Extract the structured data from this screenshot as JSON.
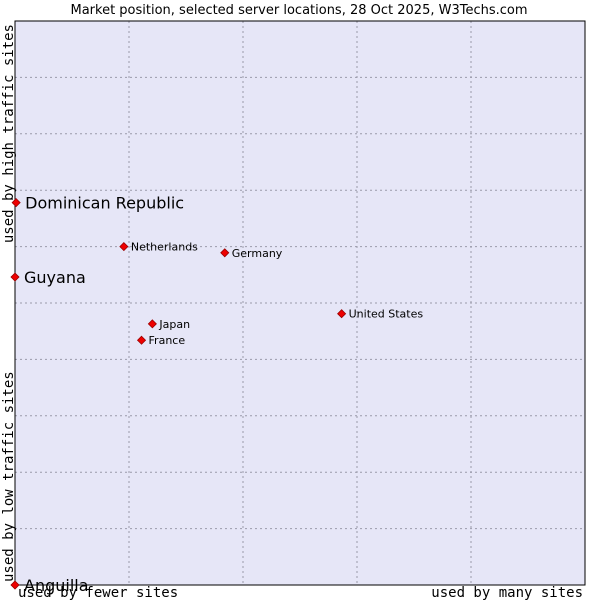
{
  "chart_data": {
    "type": "scatter",
    "title": "Market position, selected server locations, 28 Oct 2025, W3Techs.com",
    "xlabel_left": "used by fewer sites",
    "xlabel_right": "used by many sites",
    "ylabel_bottom": "used by low traffic sites",
    "ylabel_top": "used by high traffic sites",
    "xlim": [
      0,
      100
    ],
    "ylim": [
      0,
      100
    ],
    "grid": true,
    "colors": {
      "plot_bg": "#e6e6f7",
      "grid": "#9a9aaa",
      "border": "#000000",
      "point": "#ee0000",
      "point_edge": "#990000"
    },
    "points": [
      {
        "name": "Dominican Republic",
        "x": 0.2,
        "y": 67.8,
        "emphasis": true
      },
      {
        "name": "Guyana",
        "x": 0.0,
        "y": 54.6,
        "emphasis": true
      },
      {
        "name": "Anguilla",
        "x": 0.0,
        "y": 0.0,
        "emphasis": true
      },
      {
        "name": "Netherlands",
        "x": 19.1,
        "y": 60.0,
        "emphasis": false
      },
      {
        "name": "Germany",
        "x": 36.8,
        "y": 58.9,
        "emphasis": false
      },
      {
        "name": "United States",
        "x": 57.3,
        "y": 48.1,
        "emphasis": false
      },
      {
        "name": "Japan",
        "x": 24.1,
        "y": 46.3,
        "emphasis": false
      },
      {
        "name": "France",
        "x": 22.2,
        "y": 43.4,
        "emphasis": false
      }
    ]
  }
}
